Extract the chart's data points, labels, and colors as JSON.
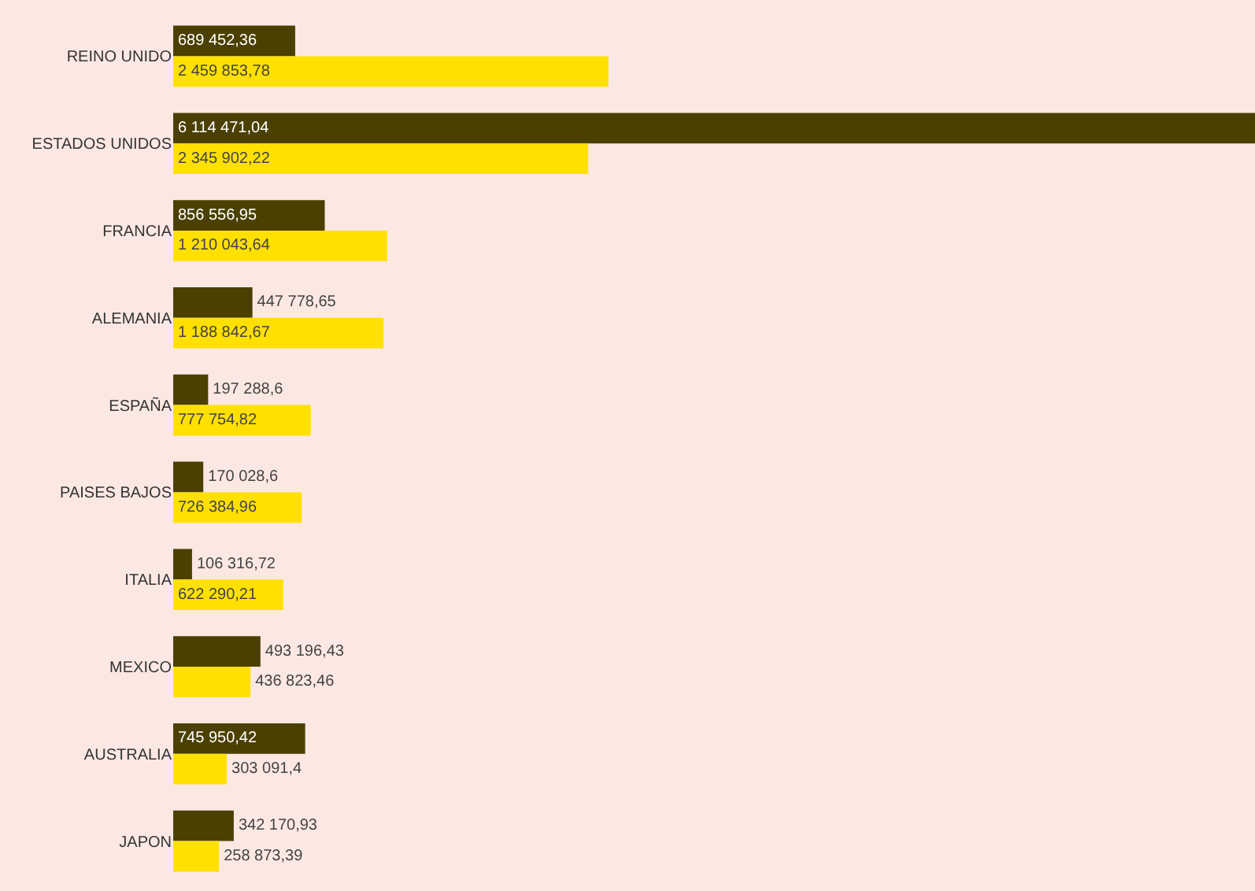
{
  "chart_data": {
    "type": "bar",
    "orientation": "horizontal",
    "categories": [
      "REINO UNIDO",
      "ESTADOS UNIDOS",
      "FRANCIA",
      "ALEMANIA",
      "ESPAÑA",
      "PAISES BAJOS",
      "ITALIA",
      "MEXICO",
      "AUSTRALIA",
      "JAPON"
    ],
    "series": [
      {
        "color": "#4b4000",
        "values": [
          689452.36,
          6114471.04,
          856556.95,
          447778.65,
          197288.6,
          170028.6,
          106316.72,
          493196.43,
          745950.42,
          342170.93
        ],
        "value_labels": [
          "689 452,36",
          "6 114 471,04",
          "856 556,95",
          "447 778,65",
          "197 288,6",
          "170 028,6",
          "106 316,72",
          "493 196,43",
          "745 950,42",
          "342 170,93"
        ]
      },
      {
        "color": "#ffe000",
        "values": [
          2459853.78,
          2345902.22,
          1210043.64,
          1188842.67,
          777754.82,
          726384.96,
          622290.21,
          436823.46,
          303091.4,
          258873.39
        ],
        "value_labels": [
          "2 459 853,78",
          "2 345 902,22",
          "1 210 043,64",
          "1 188 842,67",
          "777 754,82",
          "726 384,96",
          "622 290,21",
          "436 823,46",
          "303 091,4",
          "258 873,39"
        ]
      }
    ],
    "data_labels": false
  }
}
